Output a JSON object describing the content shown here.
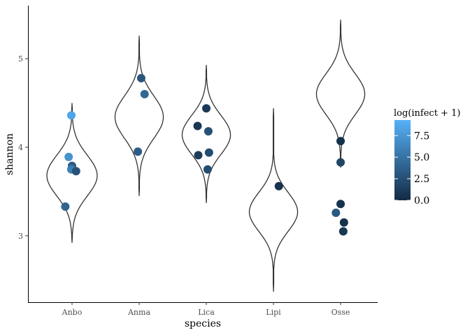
{
  "chart_data": {
    "type": "scatter",
    "subtype": "violin-with-jittered-points",
    "xlabel": "species",
    "ylabel": "shannon",
    "categories": [
      "Anbo",
      "Anma",
      "Lica",
      "Lipi",
      "Osse"
    ],
    "y_ticks": [
      3,
      4,
      5
    ],
    "ylim": [
      2.25,
      5.6
    ],
    "grid": false,
    "legend": {
      "title": "log(infect + 1)",
      "position": "right",
      "ticks": [
        0.0,
        2.5,
        5.0,
        7.5
      ],
      "tick_labels": [
        "0.0",
        "2.5",
        "5.0",
        "7.5"
      ],
      "range": [
        0,
        9.3
      ],
      "color_low": "#132B43",
      "color_high": "#56B1F7"
    },
    "violins": [
      {
        "category": "Anbo",
        "min": 2.92,
        "max": 4.5,
        "bulge_center": 3.68,
        "width": 0.75,
        "spread": 0.23
      },
      {
        "category": "Anma",
        "min": 3.45,
        "max": 5.26,
        "bulge_center": 4.34,
        "width": 0.72,
        "spread": 0.24
      },
      {
        "category": "Lica",
        "min": 3.37,
        "max": 4.93,
        "bulge_center": 4.14,
        "width": 0.72,
        "spread": 0.22
      },
      {
        "category": "Lipi",
        "min": 2.37,
        "max": 4.44,
        "bulge_center": 3.27,
        "width": 0.72,
        "spread": 0.22
      },
      {
        "category": "Osse",
        "min": 3.77,
        "max": 5.44,
        "bulge_center": 4.6,
        "width": 0.72,
        "spread": 0.23
      }
    ],
    "points": [
      {
        "category": "Anbo",
        "x": 0.99,
        "y": 4.36,
        "infect": 8.5
      },
      {
        "category": "Anbo",
        "x": 0.95,
        "y": 3.89,
        "infect": 7.2
      },
      {
        "category": "Anbo",
        "x": 1.0,
        "y": 3.79,
        "infect": 3.5
      },
      {
        "category": "Anbo",
        "x": 0.99,
        "y": 3.75,
        "infect": 5.8
      },
      {
        "category": "Anbo",
        "x": 1.06,
        "y": 3.73,
        "infect": 2.8
      },
      {
        "category": "Anbo",
        "x": 0.9,
        "y": 3.33,
        "infect": 4.0
      },
      {
        "category": "Anma",
        "x": 2.03,
        "y": 4.78,
        "infect": 3.0
      },
      {
        "category": "Anma",
        "x": 2.08,
        "y": 4.6,
        "infect": 4.2
      },
      {
        "category": "Anma",
        "x": 1.98,
        "y": 3.95,
        "infect": 3.4
      },
      {
        "category": "Lica",
        "x": 3.0,
        "y": 4.44,
        "infect": 1.0
      },
      {
        "category": "Lica",
        "x": 2.87,
        "y": 4.24,
        "infect": 0.8
      },
      {
        "category": "Lica",
        "x": 3.03,
        "y": 4.18,
        "infect": 2.6
      },
      {
        "category": "Lica",
        "x": 3.04,
        "y": 3.94,
        "infect": 2.2
      },
      {
        "category": "Lica",
        "x": 2.88,
        "y": 3.91,
        "infect": 1.2
      },
      {
        "category": "Lica",
        "x": 3.02,
        "y": 3.75,
        "infect": 2.4
      },
      {
        "category": "Lipi",
        "x": 4.08,
        "y": 3.56,
        "infect": 0.5
      },
      {
        "category": "Osse",
        "x": 5.0,
        "y": 4.07,
        "infect": 0.4
      },
      {
        "category": "Osse",
        "x": 5.0,
        "y": 3.83,
        "infect": 1.8
      },
      {
        "category": "Osse",
        "x": 5.0,
        "y": 3.36,
        "infect": 0.6
      },
      {
        "category": "Osse",
        "x": 4.93,
        "y": 3.26,
        "infect": 3.2
      },
      {
        "category": "Osse",
        "x": 5.05,
        "y": 3.15,
        "infect": 0.4
      },
      {
        "category": "Osse",
        "x": 5.04,
        "y": 3.05,
        "infect": 0.9
      }
    ]
  }
}
